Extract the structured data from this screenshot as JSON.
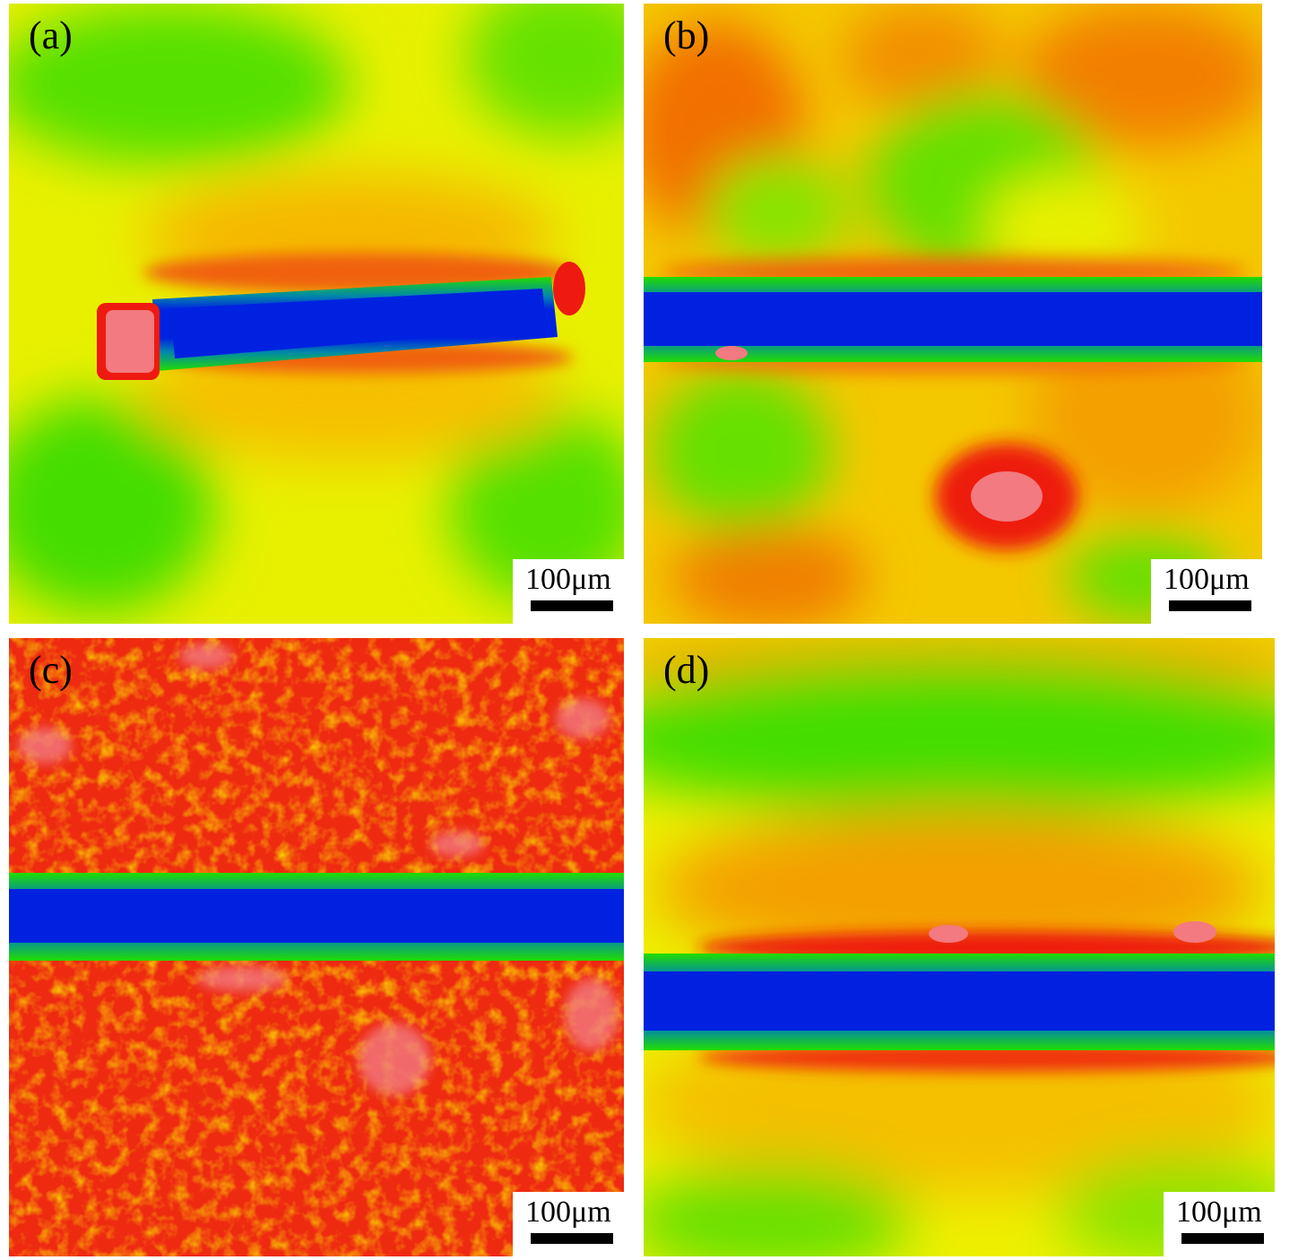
{
  "panels": [
    {
      "id": "a",
      "label": "(a)",
      "scale_label": "100μm"
    },
    {
      "id": "b",
      "label": "(b)",
      "scale_label": "100μm"
    },
    {
      "id": "c",
      "label": "(c)",
      "scale_label": "100μm"
    },
    {
      "id": "d",
      "label": "(d)",
      "scale_label": "100μm"
    }
  ],
  "colors": {
    "blue": "#0022e0",
    "green": "#22dd00",
    "yellow": "#e8f000",
    "orange": "#f8a000",
    "red": "#ee1a10",
    "pink": "#f27a80"
  }
}
